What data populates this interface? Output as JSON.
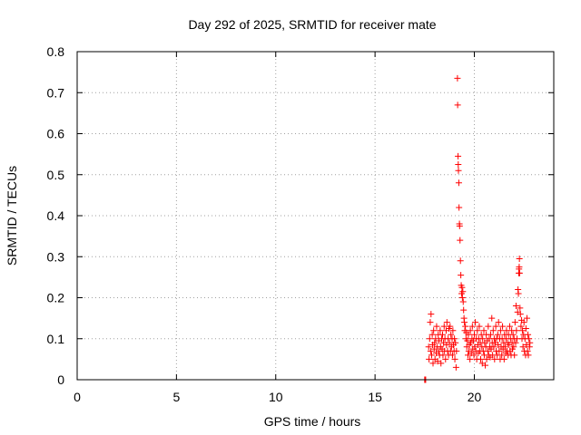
{
  "chart_data": {
    "type": "scatter",
    "title": "Day 292 of 2025, SRMTID for receiver mate",
    "xlabel": "GPS time / hours",
    "ylabel": "SRMTID / TECUs",
    "xlim": [
      0,
      24
    ],
    "ylim": [
      0,
      0.8
    ],
    "xticks": [
      0,
      5,
      10,
      15,
      20
    ],
    "yticks": [
      0,
      0.1,
      0.2,
      0.3,
      0.4,
      0.5,
      0.6,
      0.7,
      0.8
    ],
    "xtick_labels": [
      "0",
      "5",
      "10",
      "15",
      "20"
    ],
    "ytick_labels": [
      "0",
      "0.1",
      "0.2",
      "0.3",
      "0.4",
      "0.5",
      "0.6",
      "0.7",
      "0.8"
    ],
    "grid": true,
    "marker": "+",
    "color": "#ff0000",
    "series": [
      {
        "name": "SRMTID",
        "points": [
          [
            17.5,
            0.0
          ],
          [
            17.52,
            0.0
          ],
          [
            17.55,
            0.0
          ],
          [
            17.7,
            0.08
          ],
          [
            17.72,
            0.05
          ],
          [
            17.75,
            0.1
          ],
          [
            17.78,
            0.14
          ],
          [
            17.8,
            0.07
          ],
          [
            17.82,
            0.16
          ],
          [
            17.85,
            0.06
          ],
          [
            17.88,
            0.11
          ],
          [
            17.9,
            0.085
          ],
          [
            17.92,
            0.04
          ],
          [
            17.95,
            0.12
          ],
          [
            17.98,
            0.075
          ],
          [
            18.0,
            0.09
          ],
          [
            18.02,
            0.05
          ],
          [
            18.05,
            0.1
          ],
          [
            18.08,
            0.065
          ],
          [
            18.1,
            0.13
          ],
          [
            18.12,
            0.08
          ],
          [
            18.15,
            0.045
          ],
          [
            18.18,
            0.11
          ],
          [
            18.2,
            0.07
          ],
          [
            18.22,
            0.095
          ],
          [
            18.25,
            0.06
          ],
          [
            18.28,
            0.12
          ],
          [
            18.3,
            0.08
          ],
          [
            18.32,
            0.04
          ],
          [
            18.35,
            0.1
          ],
          [
            18.38,
            0.075
          ],
          [
            18.4,
            0.11
          ],
          [
            18.42,
            0.06
          ],
          [
            18.45,
            0.09
          ],
          [
            18.48,
            0.13
          ],
          [
            18.5,
            0.07
          ],
          [
            18.52,
            0.1
          ],
          [
            18.55,
            0.05
          ],
          [
            18.58,
            0.12
          ],
          [
            18.6,
            0.085
          ],
          [
            18.62,
            0.14
          ],
          [
            18.65,
            0.07
          ],
          [
            18.68,
            0.1
          ],
          [
            18.7,
            0.06
          ],
          [
            18.72,
            0.125
          ],
          [
            18.75,
            0.09
          ],
          [
            18.78,
            0.13
          ],
          [
            18.8,
            0.07
          ],
          [
            18.82,
            0.11
          ],
          [
            18.85,
            0.08
          ],
          [
            18.88,
            0.1
          ],
          [
            18.9,
            0.06
          ],
          [
            18.92,
            0.12
          ],
          [
            18.95,
            0.085
          ],
          [
            18.98,
            0.07
          ],
          [
            19.0,
            0.1
          ],
          [
            19.02,
            0.05
          ],
          [
            19.05,
            0.09
          ],
          [
            19.08,
            0.03
          ],
          [
            19.1,
            0.07
          ],
          [
            19.15,
            0.735
          ],
          [
            19.16,
            0.67
          ],
          [
            19.18,
            0.545
          ],
          [
            19.19,
            0.525
          ],
          [
            19.2,
            0.51
          ],
          [
            19.22,
            0.48
          ],
          [
            19.23,
            0.42
          ],
          [
            19.25,
            0.38
          ],
          [
            19.26,
            0.375
          ],
          [
            19.28,
            0.34
          ],
          [
            19.3,
            0.29
          ],
          [
            19.32,
            0.255
          ],
          [
            19.34,
            0.23
          ],
          [
            19.36,
            0.21
          ],
          [
            19.38,
            0.225
          ],
          [
            19.4,
            0.2
          ],
          [
            19.42,
            0.215
          ],
          [
            19.44,
            0.19
          ],
          [
            19.46,
            0.17
          ],
          [
            19.48,
            0.15
          ],
          [
            19.5,
            0.14
          ],
          [
            19.52,
            0.12
          ],
          [
            19.55,
            0.13
          ],
          [
            19.58,
            0.1
          ],
          [
            19.6,
            0.115
          ],
          [
            19.62,
            0.08
          ],
          [
            19.65,
            0.095
          ],
          [
            19.68,
            0.06
          ],
          [
            19.7,
            0.11
          ],
          [
            19.72,
            0.07
          ],
          [
            19.75,
            0.085
          ],
          [
            19.78,
            0.05
          ],
          [
            19.8,
            0.12
          ],
          [
            19.82,
            0.09
          ],
          [
            19.85,
            0.065
          ],
          [
            19.88,
            0.1
          ],
          [
            19.9,
            0.13
          ],
          [
            19.92,
            0.075
          ],
          [
            19.95,
            0.095
          ],
          [
            19.98,
            0.06
          ],
          [
            20.0,
            0.11
          ],
          [
            20.02,
            0.08
          ],
          [
            20.05,
            0.14
          ],
          [
            20.08,
            0.07
          ],
          [
            20.1,
            0.1
          ],
          [
            20.12,
            0.05
          ],
          [
            20.15,
            0.12
          ],
          [
            20.18,
            0.085
          ],
          [
            20.2,
            0.065
          ],
          [
            20.22,
            0.1
          ],
          [
            20.25,
            0.13
          ],
          [
            20.28,
            0.07
          ],
          [
            20.3,
            0.09
          ],
          [
            20.32,
            0.05
          ],
          [
            20.35,
            0.11
          ],
          [
            20.38,
            0.08
          ],
          [
            20.4,
            0.04
          ],
          [
            20.42,
            0.1
          ],
          [
            20.45,
            0.07
          ],
          [
            20.48,
            0.12
          ],
          [
            20.5,
            0.06
          ],
          [
            20.52,
            0.09
          ],
          [
            20.55,
            0.035
          ],
          [
            20.58,
            0.08
          ],
          [
            20.6,
            0.11
          ],
          [
            20.62,
            0.05
          ],
          [
            20.65,
            0.095
          ],
          [
            20.68,
            0.07
          ],
          [
            20.7,
            0.13
          ],
          [
            20.72,
            0.06
          ],
          [
            20.75,
            0.1
          ],
          [
            20.78,
            0.08
          ],
          [
            20.8,
            0.055
          ],
          [
            20.82,
            0.11
          ],
          [
            20.85,
            0.075
          ],
          [
            20.88,
            0.15
          ],
          [
            20.9,
            0.09
          ],
          [
            20.92,
            0.06
          ],
          [
            20.95,
            0.12
          ],
          [
            20.98,
            0.08
          ],
          [
            21.0,
            0.1
          ],
          [
            21.02,
            0.05
          ],
          [
            21.05,
            0.09
          ],
          [
            21.08,
            0.13
          ],
          [
            21.1,
            0.07
          ],
          [
            21.12,
            0.1
          ],
          [
            21.15,
            0.06
          ],
          [
            21.18,
            0.11
          ],
          [
            21.2,
            0.085
          ],
          [
            21.22,
            0.14
          ],
          [
            21.25,
            0.07
          ],
          [
            21.28,
            0.1
          ],
          [
            21.3,
            0.05
          ],
          [
            21.32,
            0.12
          ],
          [
            21.35,
            0.08
          ],
          [
            21.38,
            0.06
          ],
          [
            21.4,
            0.1
          ],
          [
            21.42,
            0.13
          ],
          [
            21.45,
            0.075
          ],
          [
            21.48,
            0.09
          ],
          [
            21.5,
            0.05
          ],
          [
            21.52,
            0.11
          ],
          [
            21.55,
            0.08
          ],
          [
            21.58,
            0.065
          ],
          [
            21.6,
            0.1
          ],
          [
            21.62,
            0.12
          ],
          [
            21.65,
            0.07
          ],
          [
            21.68,
            0.09
          ],
          [
            21.7,
            0.06
          ],
          [
            21.72,
            0.11
          ],
          [
            21.75,
            0.085
          ],
          [
            21.78,
            0.13
          ],
          [
            21.8,
            0.07
          ],
          [
            21.82,
            0.1
          ],
          [
            21.85,
            0.06
          ],
          [
            21.88,
            0.12
          ],
          [
            21.9,
            0.09
          ],
          [
            21.92,
            0.075
          ],
          [
            21.95,
            0.11
          ],
          [
            21.98,
            0.08
          ],
          [
            22.0,
            0.1
          ],
          [
            22.02,
            0.06
          ],
          [
            22.05,
            0.14
          ],
          [
            22.08,
            0.09
          ],
          [
            22.1,
            0.18
          ],
          [
            22.12,
            0.12
          ],
          [
            22.15,
            0.1
          ],
          [
            22.18,
            0.165
          ],
          [
            22.2,
            0.22
          ],
          [
            22.22,
            0.21
          ],
          [
            22.24,
            0.26
          ],
          [
            22.25,
            0.27
          ],
          [
            22.26,
            0.275
          ],
          [
            22.27,
            0.295
          ],
          [
            22.28,
            0.26
          ],
          [
            22.3,
            0.175
          ],
          [
            22.32,
            0.16
          ],
          [
            22.35,
            0.13
          ],
          [
            22.38,
            0.145
          ],
          [
            22.4,
            0.1
          ],
          [
            22.42,
            0.12
          ],
          [
            22.45,
            0.08
          ],
          [
            22.48,
            0.11
          ],
          [
            22.5,
            0.14
          ],
          [
            22.52,
            0.07
          ],
          [
            22.55,
            0.1
          ],
          [
            22.58,
            0.06
          ],
          [
            22.6,
            0.125
          ],
          [
            22.62,
            0.085
          ],
          [
            22.65,
            0.15
          ],
          [
            22.68,
            0.07
          ],
          [
            22.7,
            0.11
          ],
          [
            22.72,
            0.06
          ],
          [
            22.75,
            0.1
          ],
          [
            22.78,
            0.08
          ],
          [
            22.8,
            0.09
          ]
        ]
      }
    ]
  }
}
